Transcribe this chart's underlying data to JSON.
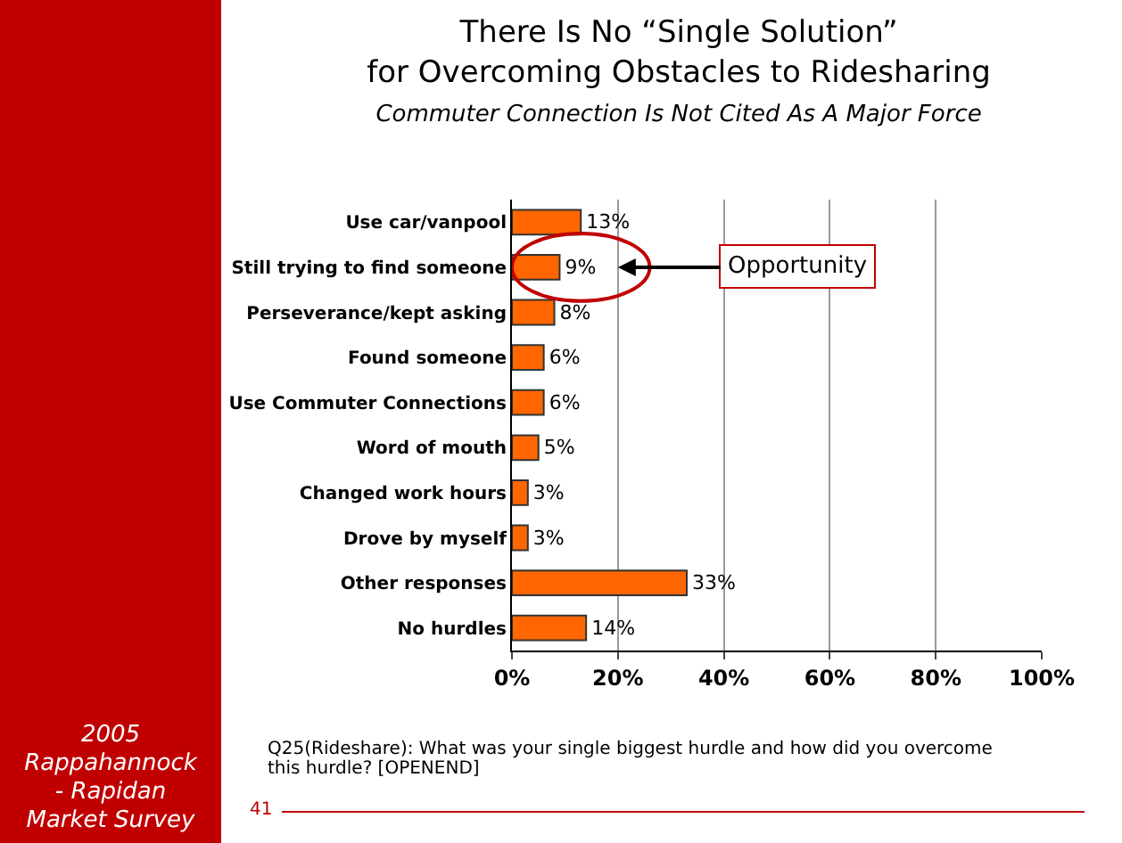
{
  "chart_data": {
    "type": "bar",
    "orientation": "horizontal",
    "title": "There Is No “Single Solution”\nfor Overcoming Obstacles to Ridesharing",
    "subtitle": "Commuter Connection Is Not Cited As A Major Force",
    "categories": [
      "Use car/vanpool",
      "Still trying to find someone",
      "Perseverance/kept asking",
      "Found someone",
      "Use Commuter Connections",
      "Word of mouth",
      "Changed work hours",
      "Drove by myself",
      "Other responses",
      "No hurdles"
    ],
    "values": [
      13,
      9,
      8,
      6,
      6,
      5,
      3,
      3,
      33,
      14
    ],
    "value_labels": [
      "13%",
      "9%",
      "8%",
      "6%",
      "6%",
      "5%",
      "3%",
      "3%",
      "33%",
      "14%"
    ],
    "color": "#ff6600",
    "xlim": [
      0,
      100
    ],
    "xticks": [
      {
        "value": 0,
        "label": "0%"
      },
      {
        "value": 20,
        "label": "20%"
      },
      {
        "value": 40,
        "label": "40%"
      },
      {
        "value": 60,
        "label": "60%"
      },
      {
        "value": 80,
        "label": "80%"
      },
      {
        "value": 100,
        "label": "100%"
      }
    ],
    "grid": "x",
    "annotations": [
      {
        "text": "Opportunity",
        "x": 9,
        "y": "Still trying to find someone"
      },
      "2005\nRappahannock\n- Rapidan\nMarket Survey",
      "Q25(Rideshare): What was your single biggest hurdle and how did you overcome this hurdle? [OPENEND]",
      "41"
    ]
  }
}
